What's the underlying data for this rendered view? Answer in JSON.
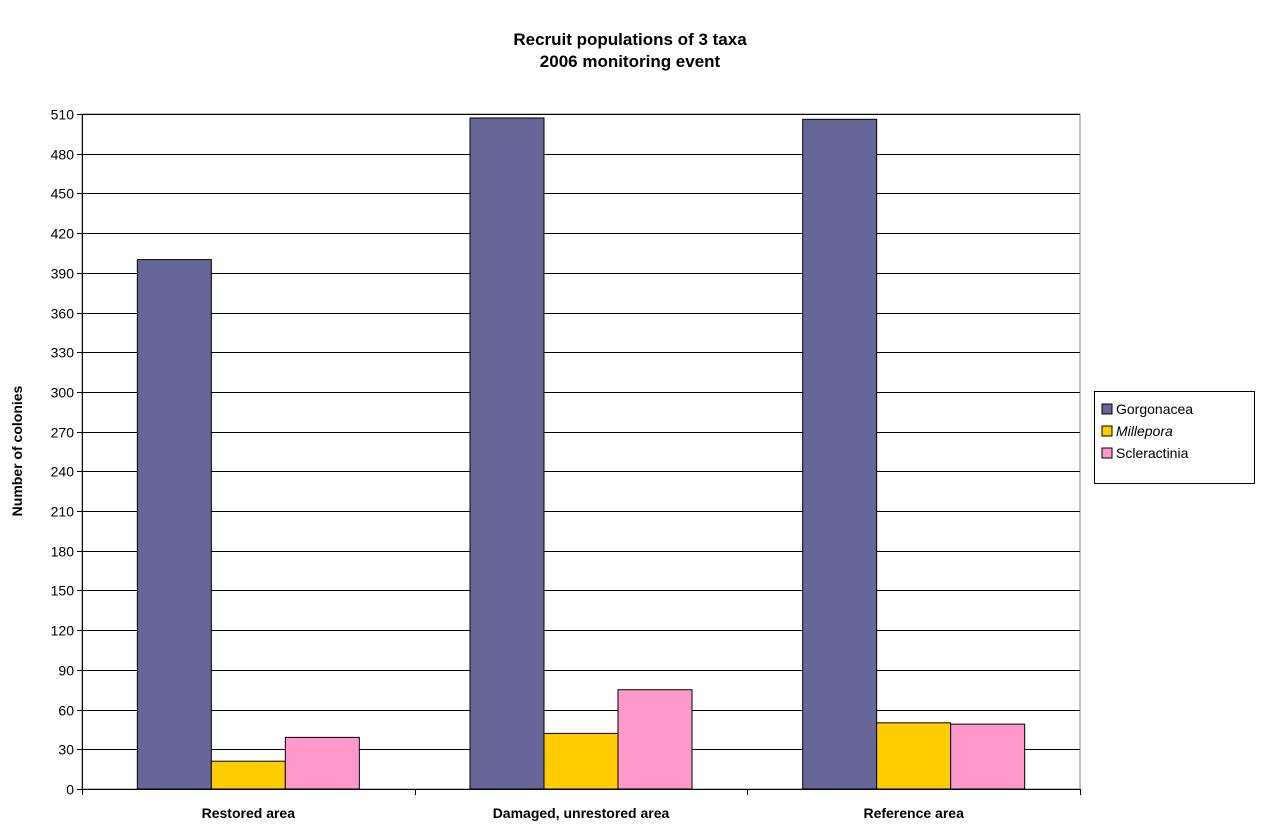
{
  "chart_data": {
    "type": "bar",
    "title": "Recruit populations of 3 taxa",
    "subtitle": "2006 monitoring event",
    "xlabel": "",
    "ylabel": "Number of colonies",
    "categories": [
      "Restored area",
      "Damaged, unrestored area",
      "Reference area"
    ],
    "ylim": [
      0,
      510
    ],
    "yticks": [
      0,
      30,
      60,
      90,
      120,
      150,
      180,
      210,
      240,
      270,
      300,
      330,
      360,
      390,
      420,
      450,
      480,
      510
    ],
    "grid": true,
    "legend_position": "right",
    "series": [
      {
        "name": "Gorgonacea",
        "italic": false,
        "color": "#666699",
        "values": [
          400,
          507,
          506
        ]
      },
      {
        "name": "Millepora",
        "italic": true,
        "color": "#ffcc00",
        "values": [
          21,
          42,
          50
        ]
      },
      {
        "name": "Scleractinia",
        "italic": false,
        "color": "#ff99cc",
        "values": [
          39,
          75,
          49
        ]
      }
    ]
  }
}
